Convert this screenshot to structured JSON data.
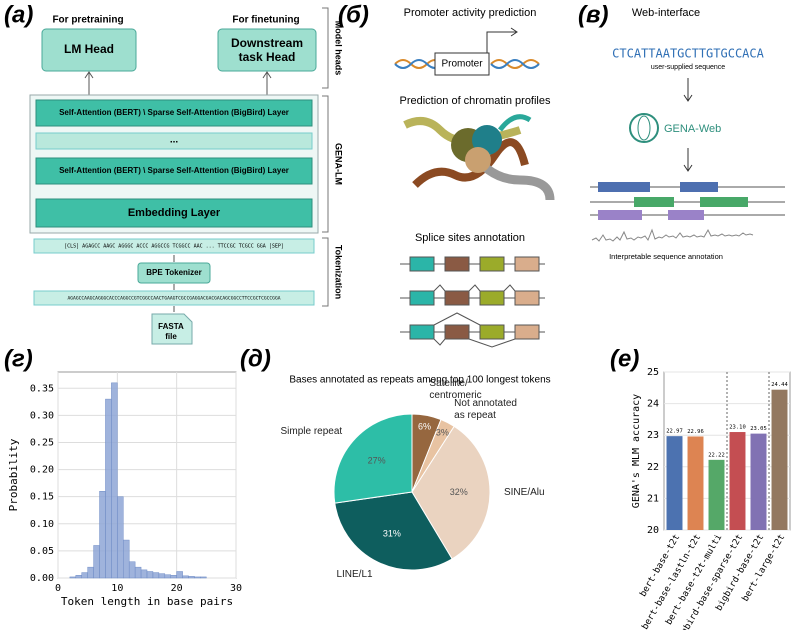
{
  "panel_labels": [
    "(а)",
    "(б)",
    "(в)",
    "(г)",
    "(д)",
    "(е)"
  ],
  "panel_a": {
    "pretraining_label": "For pretraining",
    "finetuning_label": "For finetuning",
    "lm_head": "LM Head",
    "task_head": [
      "Downstream",
      "task Head"
    ],
    "model_heads_label": "Model heads",
    "layer_top": "Self-Attention (BERT) \\ Sparse Self-Attention (BigBird) Layer",
    "ellipsis": "...",
    "layer_bottom": "Self-Attention (BERT) \\ Sparse Self-Attention (BigBird) Layer",
    "gena_lm_label": "GENA-LM",
    "embedding": "Embedding Layer",
    "tokenization_label": "Tokenization",
    "tokens": "[CLS]  AGAGCC  AAGC  AGGGC  ACCC  AGGCCG  TCGGCC  AAC  ...  TTCCGC  TCGCC  GGA  [SEP]",
    "tokenizer": "BPE Tokenizer",
    "sequence": "AGAGCCAAGCAGGGCACCCAGGCCGTCGGCCAACTGAAGTCGCCGAGGACGACGACAGCGGCCTTCCGCTCGCCGGA",
    "fasta": [
      "FASTA",
      "file"
    ]
  },
  "panel_b": {
    "promoter_title": "Promoter activity prediction",
    "promoter_box": "Promoter",
    "chromatin_title": "Prediction of chromatin profiles",
    "splice_title": "Splice sites annotation"
  },
  "panel_c": {
    "title": "Web-interface",
    "sequence": "CTCATTAATGCTTGTGCCACA",
    "sequence_caption": "user-supplied sequence",
    "service": "GENA-Web",
    "caption": "Interpretable sequence annotation"
  },
  "chart_data": [
    {
      "type": "histogram",
      "x_label": "Token length in base pairs",
      "y_label": "Probability",
      "bins": [
        1,
        2,
        3,
        4,
        5,
        6,
        7,
        8,
        9,
        10,
        11,
        12,
        13,
        14,
        15,
        16,
        17,
        18,
        19,
        20,
        21,
        22,
        23,
        24,
        25
      ],
      "values": [
        0.0,
        0.002,
        0.005,
        0.01,
        0.02,
        0.06,
        0.16,
        0.33,
        0.36,
        0.15,
        0.07,
        0.03,
        0.02,
        0.015,
        0.012,
        0.01,
        0.008,
        0.006,
        0.005,
        0.012,
        0.004,
        0.003,
        0.002,
        0.002
      ],
      "color": "#8ea6d6",
      "xlim": [
        0,
        30
      ],
      "xticks": [
        0,
        10,
        20,
        30
      ],
      "ylim": [
        0,
        0.38
      ],
      "yticks": [
        {
          "value": 0,
          "label": "0.00"
        },
        {
          "value": 0.05,
          "label": "0.05"
        },
        {
          "value": 0.1,
          "label": "0.10"
        },
        {
          "value": 0.15,
          "label": "0.15"
        },
        {
          "value": 0.2,
          "label": "0.20"
        },
        {
          "value": 0.25,
          "label": "0.25"
        },
        {
          "value": 0.3,
          "label": "0.30"
        },
        {
          "value": 0.35,
          "label": "0.35"
        }
      ],
      "grid": true
    },
    {
      "type": "pie",
      "title": "Bases annotated as repeats among top 100 longest tokens",
      "categories": [
        "Satellite/\ncentromeric",
        "Not annotated\nas repeat",
        "SINE/Alu",
        "LINE/L1",
        "Simple repeat"
      ],
      "values": [
        6,
        3,
        32,
        31,
        27
      ],
      "value_labels": [
        "6%",
        "3%",
        "32%",
        "31%",
        "27%"
      ],
      "colors": [
        "#96673f",
        "#e8c3a2",
        "#ead3c0",
        "#0e5e5e",
        "#2dbea7"
      ]
    },
    {
      "type": "bar",
      "y_label": "GENA's MLM accuracy",
      "categories": [
        "bert-base-t2t",
        "bert-base-lastln-t2t",
        "bert-base-t2t-multi",
        "bigbird-base-sparse-t2t",
        "bigbird-base-t2t",
        "bert-large-t2t"
      ],
      "values": [
        22.97,
        22.96,
        22.22,
        23.1,
        23.05,
        24.44
      ],
      "value_labels": [
        "22.97",
        "22.96",
        "22.22",
        "23.10",
        "23.05",
        "24.44"
      ],
      "colors": [
        "#4c72b0",
        "#dd8452",
        "#55a868",
        "#c44e52",
        "#8172b3",
        "#937860"
      ],
      "ylim": [
        20,
        25
      ],
      "yticks": [
        20,
        21,
        22,
        23,
        24,
        25
      ],
      "grid": true
    }
  ]
}
